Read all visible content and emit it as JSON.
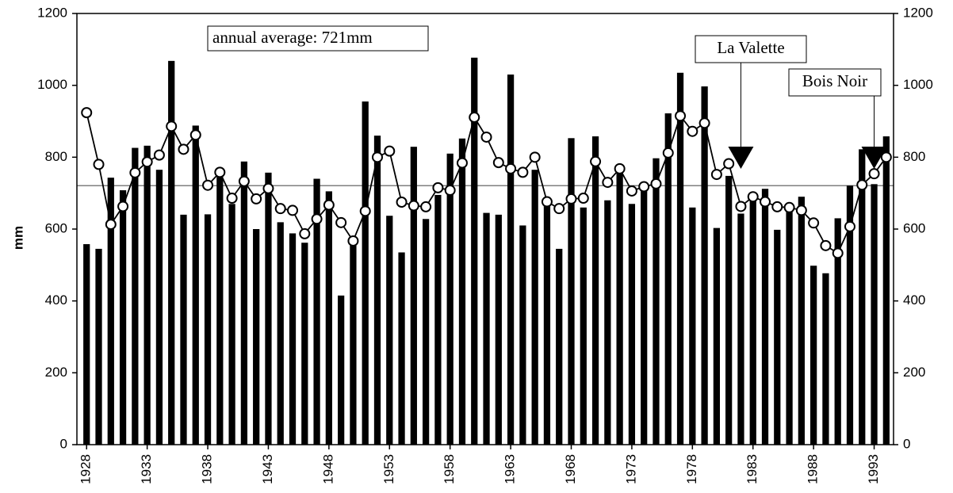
{
  "chart_data": {
    "type": "bar_line",
    "y_label": "mm",
    "x": [
      1928,
      1929,
      1930,
      1931,
      1932,
      1933,
      1934,
      1935,
      1936,
      1937,
      1938,
      1939,
      1940,
      1941,
      1942,
      1943,
      1944,
      1945,
      1946,
      1947,
      1948,
      1949,
      1950,
      1951,
      1952,
      1953,
      1954,
      1955,
      1956,
      1957,
      1958,
      1959,
      1960,
      1961,
      1962,
      1963,
      1964,
      1965,
      1966,
      1967,
      1968,
      1969,
      1970,
      1971,
      1972,
      1973,
      1974,
      1975,
      1976,
      1977,
      1978,
      1979,
      1980,
      1981,
      1982,
      1983,
      1984,
      1985,
      1986,
      1987,
      1988,
      1989,
      1990,
      1991,
      1992,
      1993,
      1994
    ],
    "series": [
      {
        "kind": "bar",
        "color": "#000000",
        "values": [
          558,
          545,
          743,
          708,
          826,
          832,
          765,
          1068,
          640,
          888,
          641,
          745,
          670,
          788,
          600,
          757,
          619,
          588,
          562,
          740,
          705,
          415,
          570,
          955,
          860,
          637,
          535,
          829,
          628,
          695,
          810,
          852,
          1077,
          645,
          640,
          1030,
          610,
          765,
          670,
          545,
          853,
          660,
          858,
          680,
          760,
          670,
          710,
          797,
          922,
          1035,
          660,
          997,
          603,
          748,
          643,
          690,
          712,
          598,
          650,
          690,
          498,
          477,
          630,
          720,
          822,
          725,
          858
        ]
      },
      {
        "kind": "line",
        "color": "#000000",
        "values": [
          924,
          780,
          613,
          663,
          757,
          787,
          806,
          886,
          822,
          862,
          722,
          758,
          686,
          733,
          684,
          713,
          657,
          652,
          587,
          628,
          667,
          618,
          567,
          650,
          800,
          817,
          675,
          665,
          662,
          715,
          708,
          784,
          911,
          856,
          785,
          768,
          758,
          800,
          676,
          657,
          684,
          686,
          788,
          730,
          768,
          706,
          718,
          726,
          812,
          915,
          872,
          895,
          752,
          782,
          663,
          690,
          676,
          662,
          660,
          652,
          617,
          554,
          533,
          607,
          723,
          754,
          800
        ]
      }
    ],
    "average": {
      "text": "annual average: 721mm",
      "value": 721
    },
    "annotations": [
      {
        "text": "La Valette",
        "x": 1982
      },
      {
        "text": "Bois Noir",
        "x": 1993
      }
    ],
    "xlim": [
      1927.2,
      1994.6
    ],
    "xticks": [
      1928,
      1933,
      1938,
      1943,
      1948,
      1953,
      1958,
      1963,
      1968,
      1973,
      1978,
      1983,
      1988,
      1993
    ],
    "ylim": [
      0,
      1200
    ],
    "yticks": [
      0,
      200,
      400,
      600,
      800,
      1000,
      1200
    ],
    "y2lim": [
      0,
      1200
    ],
    "y2ticks": [
      0,
      200,
      400,
      600,
      800,
      1000,
      1200
    ]
  }
}
